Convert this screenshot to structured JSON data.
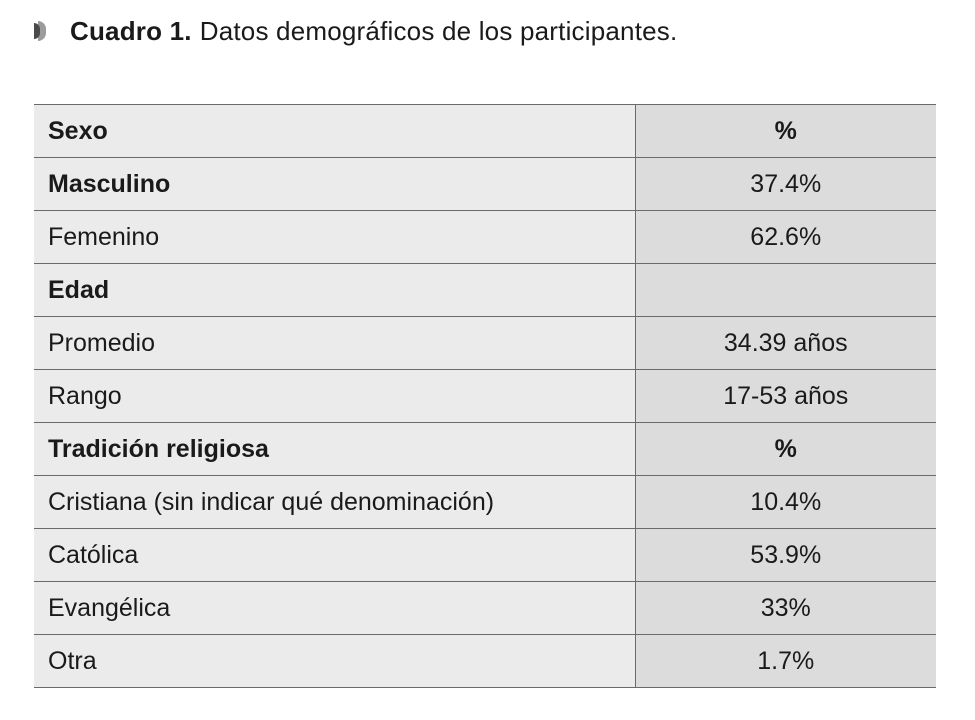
{
  "caption": {
    "label": "Cuadro 1.",
    "text": "Datos demográficos de los participantes."
  },
  "table": {
    "rows": [
      {
        "label": "Sexo",
        "value": "%",
        "bold": true,
        "header": true
      },
      {
        "label": "Masculino",
        "value": "37.4%",
        "bold": true,
        "header": false
      },
      {
        "label": "Femenino",
        "value": "62.6%",
        "bold": false,
        "header": false
      },
      {
        "label": "Edad",
        "value": "",
        "bold": true,
        "header": false
      },
      {
        "label": "Promedio",
        "value": "34.39 años",
        "bold": false,
        "header": false
      },
      {
        "label": "Rango",
        "value": "17-53 años",
        "bold": false,
        "header": false
      },
      {
        "label": "Tradición religiosa",
        "value": "%",
        "bold": true,
        "header": true
      },
      {
        "label": "Cristiana (sin indicar qué denominación)",
        "value": "10.4%",
        "bold": false,
        "header": false
      },
      {
        "label": "Católica",
        "value": "53.9%",
        "bold": false,
        "header": false
      },
      {
        "label": "Evangélica",
        "value": "33%",
        "bold": false,
        "header": false
      },
      {
        "label": "Otra",
        "value": "1.7%",
        "bold": false,
        "header": false
      }
    ]
  },
  "colors": {
    "label_cell": "#ebebeb",
    "value_cell": "#dcdcdc",
    "rule": "#6a6a6a"
  }
}
